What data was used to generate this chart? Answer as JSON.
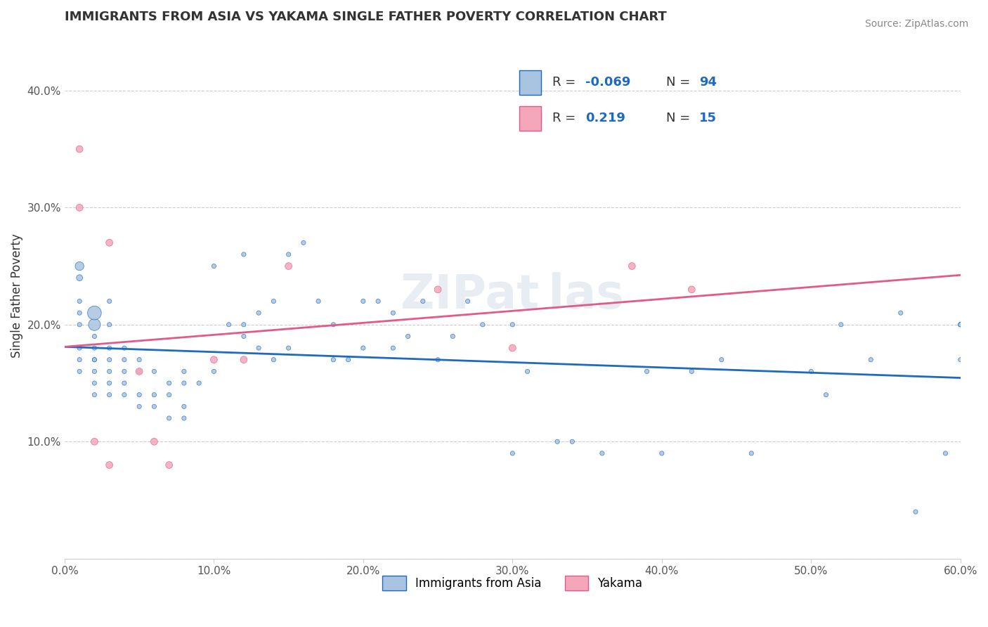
{
  "title": "IMMIGRANTS FROM ASIA VS YAKAMA SINGLE FATHER POVERTY CORRELATION CHART",
  "source": "Source: ZipAtlas.com",
  "xlabel": "",
  "ylabel": "Single Father Poverty",
  "xlim": [
    0.0,
    0.6
  ],
  "ylim": [
    0.0,
    0.45
  ],
  "xticks": [
    0.0,
    0.1,
    0.2,
    0.3,
    0.4,
    0.5,
    0.6
  ],
  "xticklabels": [
    "0.0%",
    "10.0%",
    "20.0%",
    "30.0%",
    "40.0%",
    "50.0%",
    "60.0%"
  ],
  "yticks": [
    0.0,
    0.1,
    0.2,
    0.3,
    0.4
  ],
  "yticklabels": [
    "",
    "10.0%",
    "20.0%",
    "30.0%",
    "40.0%"
  ],
  "blue_R": -0.069,
  "blue_N": 94,
  "pink_R": 0.219,
  "pink_N": 15,
  "blue_color": "#a8c4e0",
  "pink_color": "#f4a7b9",
  "blue_line_color": "#1f6abf",
  "pink_line_color": "#e05a8a",
  "legend_blue_label": "Immigrants from Asia",
  "legend_pink_label": "Yakama",
  "watermark": "ZIPat las",
  "blue_scatter_x": [
    0.01,
    0.01,
    0.01,
    0.01,
    0.01,
    0.01,
    0.01,
    0.01,
    0.02,
    0.02,
    0.02,
    0.02,
    0.02,
    0.02,
    0.02,
    0.02,
    0.02,
    0.03,
    0.03,
    0.03,
    0.03,
    0.03,
    0.03,
    0.03,
    0.04,
    0.04,
    0.04,
    0.04,
    0.04,
    0.05,
    0.05,
    0.05,
    0.05,
    0.06,
    0.06,
    0.06,
    0.07,
    0.07,
    0.07,
    0.08,
    0.08,
    0.08,
    0.08,
    0.09,
    0.1,
    0.1,
    0.11,
    0.12,
    0.12,
    0.12,
    0.13,
    0.13,
    0.14,
    0.14,
    0.15,
    0.15,
    0.16,
    0.17,
    0.18,
    0.18,
    0.19,
    0.2,
    0.2,
    0.21,
    0.22,
    0.22,
    0.23,
    0.24,
    0.25,
    0.26,
    0.27,
    0.28,
    0.3,
    0.3,
    0.31,
    0.33,
    0.34,
    0.36,
    0.39,
    0.4,
    0.42,
    0.44,
    0.46,
    0.5,
    0.51,
    0.52,
    0.54,
    0.56,
    0.57,
    0.59,
    0.6,
    0.6,
    0.6,
    0.6
  ],
  "blue_scatter_y": [
    0.16,
    0.17,
    0.18,
    0.2,
    0.21,
    0.22,
    0.24,
    0.25,
    0.14,
    0.15,
    0.16,
    0.17,
    0.17,
    0.18,
    0.19,
    0.2,
    0.21,
    0.14,
    0.15,
    0.16,
    0.17,
    0.18,
    0.2,
    0.22,
    0.14,
    0.15,
    0.16,
    0.17,
    0.18,
    0.13,
    0.14,
    0.16,
    0.17,
    0.13,
    0.14,
    0.16,
    0.12,
    0.14,
    0.15,
    0.12,
    0.13,
    0.15,
    0.16,
    0.15,
    0.16,
    0.25,
    0.2,
    0.19,
    0.2,
    0.26,
    0.18,
    0.21,
    0.17,
    0.22,
    0.18,
    0.26,
    0.27,
    0.22,
    0.17,
    0.2,
    0.17,
    0.18,
    0.22,
    0.22,
    0.18,
    0.21,
    0.19,
    0.22,
    0.17,
    0.19,
    0.22,
    0.2,
    0.09,
    0.2,
    0.16,
    0.1,
    0.1,
    0.09,
    0.16,
    0.09,
    0.16,
    0.17,
    0.09,
    0.16,
    0.14,
    0.2,
    0.17,
    0.21,
    0.04,
    0.09,
    0.17,
    0.2,
    0.2,
    0.2
  ],
  "blue_scatter_sizes": [
    20,
    20,
    20,
    20,
    20,
    20,
    40,
    80,
    20,
    20,
    20,
    20,
    20,
    20,
    20,
    150,
    200,
    20,
    20,
    20,
    20,
    20,
    20,
    20,
    20,
    20,
    20,
    20,
    20,
    20,
    20,
    20,
    20,
    20,
    20,
    20,
    20,
    20,
    20,
    20,
    20,
    20,
    20,
    20,
    20,
    20,
    20,
    20,
    20,
    20,
    20,
    20,
    20,
    20,
    20,
    20,
    20,
    20,
    20,
    20,
    20,
    20,
    20,
    20,
    20,
    20,
    20,
    20,
    20,
    20,
    20,
    20,
    20,
    20,
    20,
    20,
    20,
    20,
    20,
    20,
    20,
    20,
    20,
    20,
    20,
    20,
    20,
    20,
    20,
    20,
    20,
    20,
    20,
    20
  ],
  "pink_scatter_x": [
    0.01,
    0.01,
    0.02,
    0.03,
    0.03,
    0.05,
    0.06,
    0.07,
    0.1,
    0.12,
    0.15,
    0.25,
    0.3,
    0.38,
    0.42
  ],
  "pink_scatter_y": [
    0.35,
    0.3,
    0.1,
    0.27,
    0.08,
    0.16,
    0.1,
    0.08,
    0.17,
    0.17,
    0.25,
    0.23,
    0.18,
    0.25,
    0.23
  ],
  "pink_scatter_sizes": [
    20,
    20,
    20,
    20,
    20,
    20,
    20,
    20,
    20,
    20,
    20,
    20,
    20,
    20,
    20
  ]
}
